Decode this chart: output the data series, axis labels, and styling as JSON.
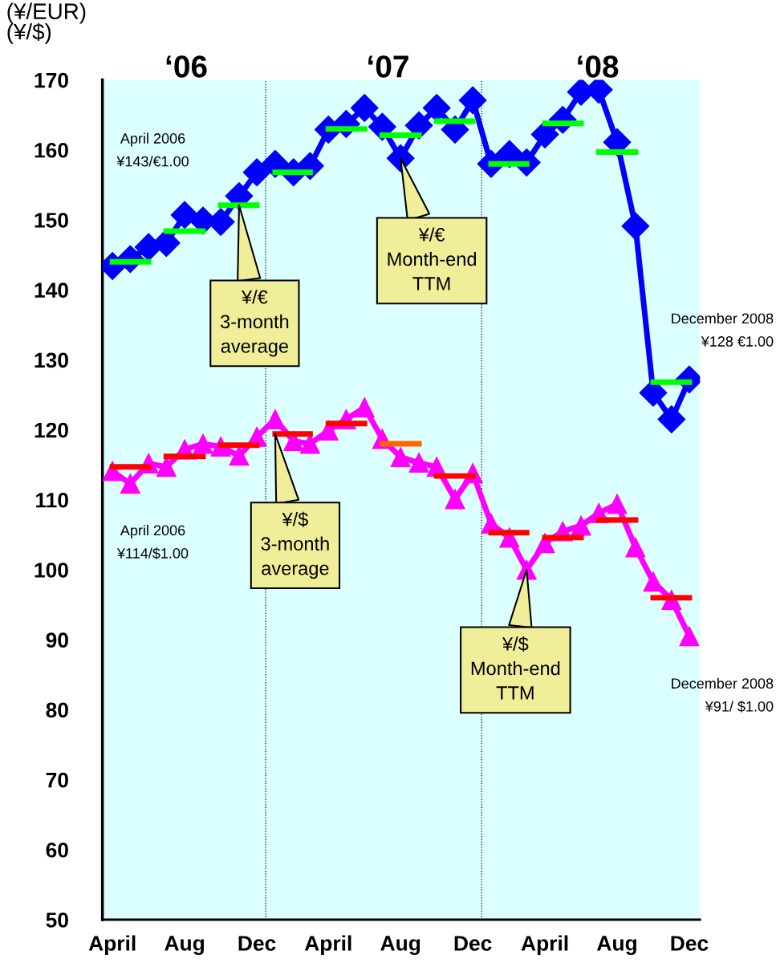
{
  "chart_data": {
    "type": "line",
    "ylabel": "(¥/EUR)\n(¥/$)",
    "x": [
      "2006-04",
      "2006-05",
      "2006-06",
      "2006-07",
      "2006-08",
      "2006-09",
      "2006-10",
      "2006-11",
      "2006-12",
      "2007-01",
      "2007-02",
      "2007-03",
      "2007-04",
      "2007-05",
      "2007-06",
      "2007-07",
      "2007-08",
      "2007-09",
      "2007-10",
      "2007-11",
      "2007-12",
      "2008-01",
      "2008-02",
      "2008-03",
      "2008-04",
      "2008-05",
      "2008-06",
      "2008-07",
      "2008-08",
      "2008-09",
      "2008-10",
      "2008-11",
      "2008-12"
    ],
    "series": [
      {
        "color": "#0000ff",
        "marker": "diamond",
        "values": [
          143.4,
          144.4,
          146.1,
          146.7,
          150.7,
          149.9,
          149.7,
          153.4,
          156.8,
          158.0,
          156.8,
          157.7,
          162.9,
          163.7,
          166.0,
          163.3,
          158.8,
          163.5,
          166.0,
          162.9,
          167.1,
          158.0,
          159.4,
          158.2,
          162.2,
          164.3,
          168.3,
          168.6,
          161.1,
          149.1,
          125.3,
          121.5,
          127.2
        ]
      },
      {
        "color": "#ff00ff",
        "marker": "triangle",
        "values": [
          114.1,
          112.3,
          115.2,
          114.7,
          117.2,
          118.0,
          117.6,
          116.3,
          119.0,
          121.5,
          118.4,
          118.0,
          119.9,
          121.5,
          123.2,
          118.7,
          116.1,
          115.3,
          114.7,
          110.1,
          113.8,
          106.6,
          104.6,
          100.0,
          103.8,
          105.5,
          106.3,
          108.1,
          109.4,
          103.2,
          98.3,
          95.7,
          90.5
        ]
      },
      {
        "color": "#00ff00",
        "marker": "none",
        "x": [
          "2006-04",
          "2006-05",
          "2006-06"
        ],
        "values": [
          144.0,
          144.0,
          144.0
        ]
      },
      {
        "color": "#00ff00",
        "marker": "none",
        "x": [
          "2006-07",
          "2006-08",
          "2006-09"
        ],
        "values": [
          148.4,
          148.4,
          148.4
        ]
      },
      {
        "color": "#00ff00",
        "marker": "none",
        "x": [
          "2006-10",
          "2006-11",
          "2006-12"
        ],
        "values": [
          152.1,
          152.1,
          152.1
        ]
      },
      {
        "color": "#00ff00",
        "marker": "none",
        "x": [
          "2007-01",
          "2007-02",
          "2007-03"
        ],
        "values": [
          156.8,
          156.8,
          156.8
        ]
      },
      {
        "color": "#00ff00",
        "marker": "none",
        "x": [
          "2007-04",
          "2007-05",
          "2007-06"
        ],
        "values": [
          163.0,
          163.0,
          163.0
        ]
      },
      {
        "color": "#00ff00",
        "marker": "none",
        "x": [
          "2007-07",
          "2007-08",
          "2007-09"
        ],
        "values": [
          162.1,
          162.1,
          162.1
        ]
      },
      {
        "color": "#00ff00",
        "marker": "none",
        "x": [
          "2007-10",
          "2007-11",
          "2007-12"
        ],
        "values": [
          164.1,
          164.1,
          164.1
        ]
      },
      {
        "color": "#00ff00",
        "marker": "none",
        "x": [
          "2008-01",
          "2008-02",
          "2008-03"
        ],
        "values": [
          158.0,
          158.0,
          158.0
        ]
      },
      {
        "color": "#00ff00",
        "marker": "none",
        "x": [
          "2008-04",
          "2008-05",
          "2008-06"
        ],
        "values": [
          163.8,
          163.8,
          163.8
        ]
      },
      {
        "color": "#00ff00",
        "marker": "none",
        "x": [
          "2008-07",
          "2008-08",
          "2008-09"
        ],
        "values": [
          159.7,
          159.7,
          159.7
        ]
      },
      {
        "color": "#00ff00",
        "marker": "none",
        "x": [
          "2008-10",
          "2008-11",
          "2008-12"
        ],
        "values": [
          126.8,
          126.8,
          126.8
        ]
      },
      {
        "color": "#ff0000",
        "marker": "none",
        "x": [
          "2006-04",
          "2006-05",
          "2006-06"
        ],
        "values": [
          114.7,
          114.7,
          114.7
        ]
      },
      {
        "color": "#ff0000",
        "marker": "none",
        "x": [
          "2006-07",
          "2006-08",
          "2006-09"
        ],
        "values": [
          116.2,
          116.2,
          116.2
        ]
      },
      {
        "color": "#ff0000",
        "marker": "none",
        "x": [
          "2006-10",
          "2006-11",
          "2006-12"
        ],
        "values": [
          117.8,
          117.8,
          117.8
        ]
      },
      {
        "color": "#ff0000",
        "marker": "none",
        "x": [
          "2007-01",
          "2007-02",
          "2007-03"
        ],
        "values": [
          119.4,
          119.4,
          119.4
        ]
      },
      {
        "color": "#ff0000",
        "marker": "none",
        "x": [
          "2007-04",
          "2007-05",
          "2007-06"
        ],
        "values": [
          120.9,
          120.9,
          120.9
        ]
      },
      {
        "color": "#ff6600",
        "marker": "none",
        "x": [
          "2007-07",
          "2007-08",
          "2007-09"
        ],
        "values": [
          118.0,
          118.0,
          118.0
        ]
      },
      {
        "color": "#ff0000",
        "marker": "none",
        "x": [
          "2007-10",
          "2007-11",
          "2007-12"
        ],
        "values": [
          113.4,
          113.4,
          113.4
        ]
      },
      {
        "color": "#ff0000",
        "marker": "none",
        "x": [
          "2008-01",
          "2008-02",
          "2008-03"
        ],
        "values": [
          105.3,
          105.3,
          105.3
        ]
      },
      {
        "color": "#ff0000",
        "marker": "none",
        "x": [
          "2008-04",
          "2008-05",
          "2008-06"
        ],
        "values": [
          104.6,
          104.6,
          104.6
        ]
      },
      {
        "color": "#ff0000",
        "marker": "none",
        "x": [
          "2008-07",
          "2008-08",
          "2008-09"
        ],
        "values": [
          107.1,
          107.1,
          107.1
        ]
      },
      {
        "color": "#ff0000",
        "marker": "none",
        "x": [
          "2008-10",
          "2008-11",
          "2008-12"
        ],
        "values": [
          96.0,
          96.0,
          96.0
        ]
      }
    ],
    "xlim": [
      "2006-03-15",
      "2008-12-19"
    ],
    "xticks": [
      {
        "value": "2006-04",
        "label": "April"
      },
      {
        "value": "2006-08",
        "label": "Aug"
      },
      {
        "value": "2006-12",
        "label": "Dec"
      },
      {
        "value": "2007-04",
        "label": "April"
      },
      {
        "value": "2007-08",
        "label": "Aug"
      },
      {
        "value": "2007-12",
        "label": "Dec"
      },
      {
        "value": "2008-04",
        "label": "April"
      },
      {
        "value": "2008-08",
        "label": "Aug"
      },
      {
        "value": "2008-12",
        "label": "Dec"
      }
    ],
    "ylim": [
      50,
      170
    ],
    "yticks": [
      50,
      60,
      70,
      80,
      90,
      100,
      110,
      120,
      130,
      140,
      150,
      160,
      170
    ],
    "ref_lines": [
      {
        "axis": "x",
        "value": "2006-12-16",
        "color": "#000000",
        "line_style": "dotted"
      },
      {
        "axis": "x",
        "value": "2007-12-16",
        "color": "#000000",
        "line_style": "dotted"
      }
    ],
    "line_style": "solid",
    "annotations": [
      "‘06",
      "‘07",
      "‘08",
      "April 2006\n¥143/€1.00",
      "April 2006\n¥114/$1.00",
      "December 2008\n¥128 €1.00",
      "December 2008\n¥91/ $1.00",
      {
        "text": "¥/€\n3-month\naverage",
        "x": "2006-11",
        "y": 152.1
      },
      {
        "text": "¥/€\nMonth-end\nTTM",
        "x": "2007-08",
        "y": 158.8
      },
      {
        "text": "¥/$\n3-month\naverage",
        "x": "2007-01",
        "y": 119.4
      },
      {
        "text": "¥/$\nMonth-end\nTTM",
        "x": "2008-03",
        "y": 100.0
      }
    ]
  }
}
